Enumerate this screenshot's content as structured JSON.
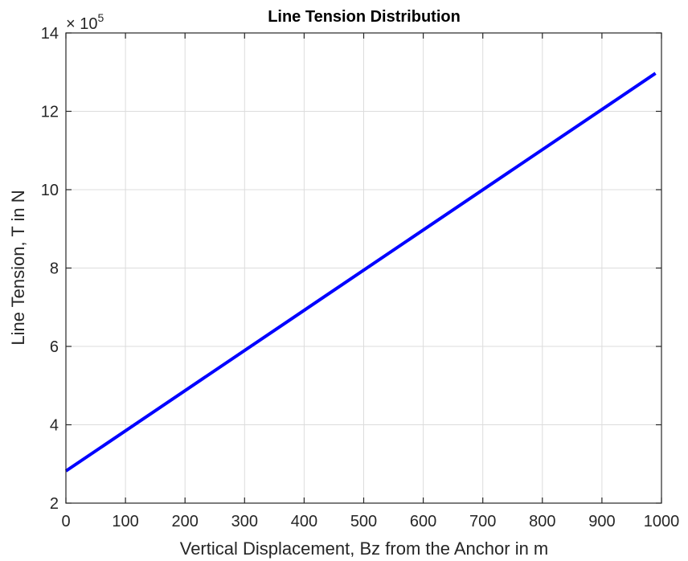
{
  "chart_data": {
    "type": "line",
    "title": "Line Tension Distribution",
    "xlabel": "Vertical Displacement, Bz from the Anchor in m",
    "ylabel": "Line Tension, T in N",
    "xlim": [
      0,
      1000
    ],
    "ylim": [
      2,
      14
    ],
    "y_multiplier_base": "× 10",
    "y_multiplier_exponent": "5",
    "y_scale": 100000,
    "xticks": [
      0,
      100,
      200,
      300,
      400,
      500,
      600,
      700,
      800,
      900,
      1000
    ],
    "yticks": [
      2,
      4,
      6,
      8,
      10,
      12,
      14
    ],
    "grid": true,
    "series": [
      {
        "color": "#0000ff",
        "x": [
          0,
          990
        ],
        "y": [
          2.82,
          12.97
        ]
      }
    ]
  }
}
